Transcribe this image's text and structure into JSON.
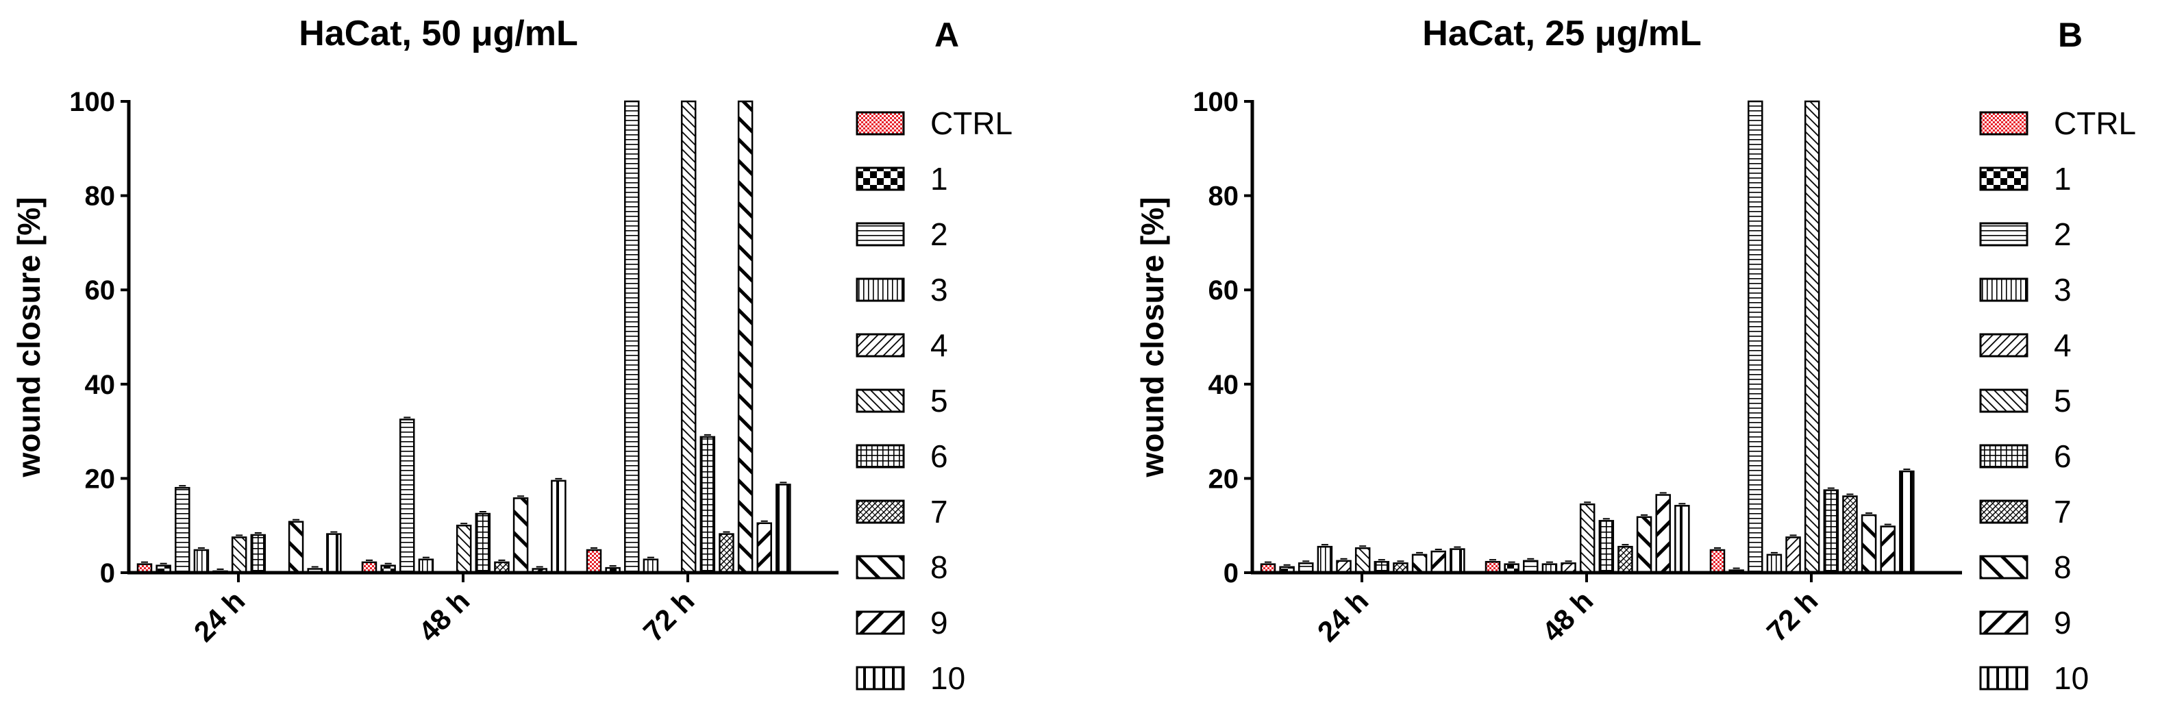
{
  "chart_data": [
    {
      "type": "bar",
      "title": "HaCat, 50 μg/mL",
      "panel": "A",
      "xlabel": "",
      "ylabel": "wound closure [%]",
      "ylim": [
        0,
        100
      ],
      "yticks": [
        "0",
        "20",
        "40",
        "60",
        "80",
        "100"
      ],
      "categories": [
        "24 h",
        "48 h",
        "72 h"
      ],
      "series": [
        {
          "name": "CTRL",
          "pattern": "checker-red",
          "values": [
            1.8,
            2.2,
            4.8
          ]
        },
        {
          "name": "1",
          "pattern": "checker",
          "values": [
            1.5,
            1.5,
            1.0
          ]
        },
        {
          "name": "2",
          "pattern": "hlines",
          "values": [
            18.0,
            32.5,
            100
          ]
        },
        {
          "name": "3",
          "pattern": "vlines",
          "values": [
            4.8,
            2.8,
            2.8
          ]
        },
        {
          "name": "4",
          "pattern": "diag-up",
          "values": [
            0.3,
            0,
            0
          ]
        },
        {
          "name": "5",
          "pattern": "diag-down",
          "values": [
            7.5,
            10.0,
            100
          ]
        },
        {
          "name": "6",
          "pattern": "grid",
          "values": [
            8.0,
            12.5,
            28.8
          ]
        },
        {
          "name": "7",
          "pattern": "dense-diag",
          "values": [
            0,
            2.2,
            8.2
          ]
        },
        {
          "name": "8",
          "pattern": "thick-diag-down",
          "values": [
            10.8,
            15.8,
            100
          ]
        },
        {
          "name": "9",
          "pattern": "thick-diag-up",
          "values": [
            0.8,
            0.8,
            10.5
          ]
        },
        {
          "name": "10",
          "pattern": "thick-vlines",
          "values": [
            8.2,
            19.5,
            18.7
          ]
        }
      ]
    },
    {
      "type": "bar",
      "title": "HaCat, 25 μg/mL",
      "panel": "B",
      "xlabel": "",
      "ylabel": "wound closure [%]",
      "ylim": [
        0,
        100
      ],
      "yticks": [
        "0",
        "20",
        "40",
        "60",
        "80",
        "100"
      ],
      "categories": [
        "24 h",
        "48 h",
        "72 h"
      ],
      "series": [
        {
          "name": "CTRL",
          "pattern": "checker-red",
          "values": [
            1.8,
            2.3,
            4.8
          ]
        },
        {
          "name": "1",
          "pattern": "checker",
          "values": [
            1.2,
            1.8,
            0.5
          ]
        },
        {
          "name": "2",
          "pattern": "hlines",
          "values": [
            2.0,
            2.5,
            100
          ]
        },
        {
          "name": "3",
          "pattern": "vlines",
          "values": [
            5.5,
            1.8,
            3.8
          ]
        },
        {
          "name": "4",
          "pattern": "diag-up",
          "values": [
            2.5,
            2.0,
            7.5
          ]
        },
        {
          "name": "5",
          "pattern": "diag-down",
          "values": [
            5.2,
            14.5,
            100
          ]
        },
        {
          "name": "6",
          "pattern": "grid",
          "values": [
            2.3,
            11.0,
            17.5
          ]
        },
        {
          "name": "7",
          "pattern": "dense-diag",
          "values": [
            2.0,
            5.5,
            16.2
          ]
        },
        {
          "name": "8",
          "pattern": "thick-diag-down",
          "values": [
            3.8,
            11.8,
            12.2
          ]
        },
        {
          "name": "9",
          "pattern": "thick-diag-up",
          "values": [
            4.5,
            16.5,
            9.8
          ]
        },
        {
          "name": "10",
          "pattern": "thick-vlines",
          "values": [
            5.0,
            14.2,
            21.5
          ]
        }
      ]
    }
  ]
}
